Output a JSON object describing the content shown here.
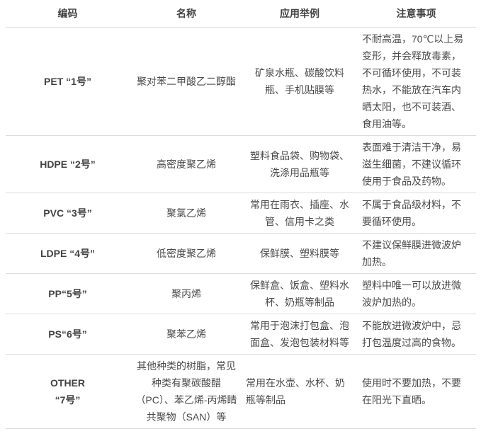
{
  "colors": {
    "background": "#ffffff",
    "text": "#4a4a4a",
    "bold_text": "#424242",
    "divider": "#dcdcdc"
  },
  "table": {
    "headers": {
      "code": "编码",
      "name": "名称",
      "examples": "应用举例",
      "notes": "注意事项"
    },
    "rows": [
      {
        "code": "PET “1号”",
        "name": "聚对苯二甲酸乙二醇酯",
        "examples": "矿泉水瓶、碳酸饮料瓶、手机贴膜等",
        "notes": "不耐高温，70℃以上易变形，并会释放毒素，不可循环使用，不可装热水，不能放在汽车内晒太阳，也不可装酒、食用油等。"
      },
      {
        "code": "HDPE “2号”",
        "name": "高密度聚乙烯",
        "examples": "塑料食品袋、购物袋、洗涤用品瓶等",
        "notes": "表面难于清洁干净，易滋生细菌，不建议循环使用于食品及药物。"
      },
      {
        "code": "PVC “3号”",
        "name": "聚氯乙烯",
        "examples": "常用在雨衣、插座、水管、信用卡之类",
        "notes": "不属于食品级材料，不要循环使用。"
      },
      {
        "code": "LDPE “4号”",
        "name": "低密度聚乙烯",
        "examples": "保鲜膜、塑料膜等",
        "notes": "不建议保鲜膜进微波炉加热。"
      },
      {
        "code": "PP“5号”",
        "name": "聚丙烯",
        "examples": "保鲜盒、饭盒、塑料水杯、奶瓶等制品",
        "notes": "塑料中唯一可以放进微波炉加热的。"
      },
      {
        "code": "PS“6号”",
        "name": "聚苯乙烯",
        "examples": "常用于泡沫打包盒、泡面盒、发泡包装材料等",
        "notes": "不能放进微波炉中，忌打包温度过高的食物。"
      },
      {
        "code": "OTHER\n“7号”",
        "name": "其他种类的树脂，常见种类有聚碳酸醋（PC）、苯乙烯-丙烯睛共聚物（SAN）等",
        "examples": "常用在水壶、水杯、奶瓶等制品",
        "notes": "使用时不要加热，不要在阳光下直晒。"
      }
    ]
  }
}
